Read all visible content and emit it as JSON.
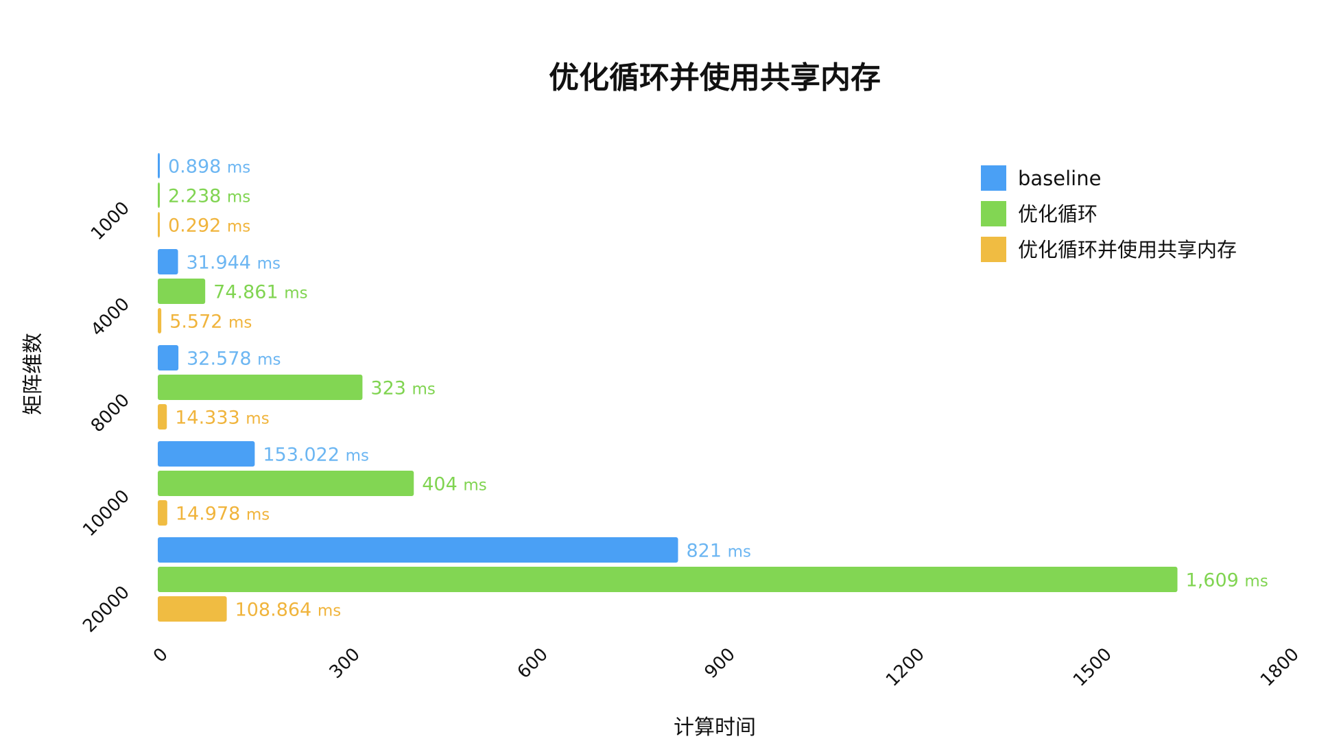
{
  "chart_data": {
    "type": "bar",
    "orientation": "horizontal",
    "title": "优化循环并使用共享内存",
    "xlabel": "计算时间",
    "ylabel": "矩阵维数",
    "categories": [
      "1000",
      "4000",
      "8000",
      "10000",
      "20000"
    ],
    "xlim": [
      0,
      1800
    ],
    "xticks": [
      "0",
      "300",
      "600",
      "900",
      "1200",
      "1500",
      "1800"
    ],
    "grid": false,
    "legend_position": "top-right",
    "series": [
      {
        "name": "baseline",
        "color": "#4aa0f5",
        "label_color": "#6cb6f2",
        "values": [
          0.898,
          31.944,
          32.578,
          153.022,
          821
        ],
        "labels": [
          "0.898",
          "31.944",
          "32.578",
          "153.022",
          "821"
        ]
      },
      {
        "name": "优化循环",
        "color": "#82d653",
        "label_color": "#80d451",
        "values": [
          2.238,
          74.861,
          323,
          404,
          1609
        ],
        "labels": [
          "2.238",
          "74.861",
          "323",
          "404",
          "1,609"
        ]
      },
      {
        "name": "优化循环并使用共享内存",
        "color": "#f0bc42",
        "label_color": "#f0b43c",
        "values": [
          0.292,
          5.572,
          14.333,
          14.978,
          108.864
        ],
        "labels": [
          "0.292",
          "5.572",
          "14.333",
          "14.978",
          "108.864"
        ]
      }
    ],
    "unit": "ms"
  }
}
